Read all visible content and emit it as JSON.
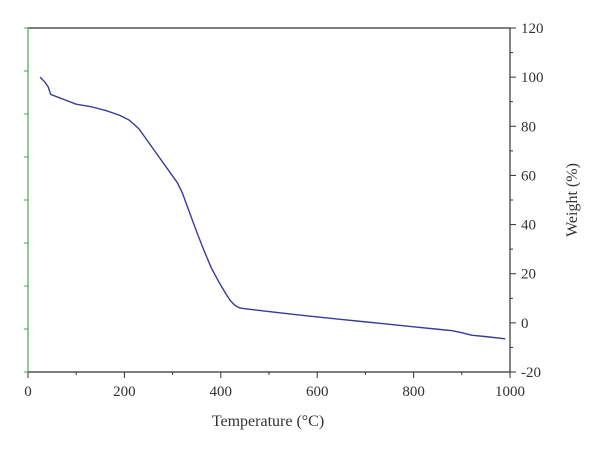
{
  "chart_data": {
    "type": "line",
    "title": "",
    "xlabel": "Temperature (°C)",
    "ylabel": "Weight (%)",
    "xlim": [
      0,
      1000
    ],
    "ylim": [
      -20,
      120
    ],
    "x_ticks": [
      "0",
      "200",
      "400",
      "600",
      "800",
      "1000"
    ],
    "y_ticks": [
      "120",
      "100",
      "80",
      "60",
      "40",
      "20",
      "0",
      "-20"
    ],
    "y_axis_position": "right",
    "grid": false,
    "legend": "none",
    "series": [
      {
        "color": "#3a3a9a",
        "x": [
          25,
          35,
          42,
          47,
          60,
          80,
          100,
          130,
          160,
          190,
          210,
          230,
          250,
          270,
          290,
          310,
          320,
          335,
          350,
          365,
          380,
          395,
          410,
          420,
          430,
          440,
          460,
          500,
          550,
          600,
          650,
          700,
          750,
          800,
          850,
          880,
          900,
          920,
          950,
          990
        ],
        "y": [
          100,
          98,
          96,
          93,
          92,
          90.5,
          89,
          88,
          86.5,
          84.5,
          82.5,
          79,
          73.5,
          68,
          62.5,
          57,
          53,
          45,
          37,
          29.5,
          22.5,
          17,
          12,
          9,
          7,
          6,
          5.5,
          4.6,
          3.5,
          2.4,
          1.4,
          0.4,
          -0.6,
          -1.6,
          -2.6,
          -3.2,
          -4,
          -5,
          -5.6,
          -6.5
        ]
      }
    ]
  },
  "colors": {
    "axis": "#333333",
    "left_axis": "#4aa84a",
    "line": "#3a3a9a"
  }
}
